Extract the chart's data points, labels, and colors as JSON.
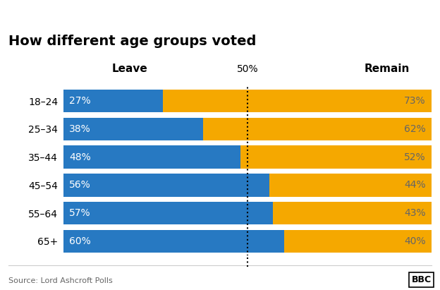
{
  "title": "How different age groups voted",
  "categories": [
    "18–24",
    "25–34",
    "35–44",
    "45–54",
    "55–64",
    "65+"
  ],
  "leave_pct": [
    27,
    38,
    48,
    56,
    57,
    60
  ],
  "remain_pct": [
    73,
    62,
    52,
    44,
    43,
    40
  ],
  "leave_color": "#2779C2",
  "remain_color": "#F5A800",
  "leave_label": "Leave",
  "remain_label": "Remain",
  "fifty_pct_label": "50%",
  "source_text": "Source: Lord Ashcroft Polls",
  "bbc_text": "BBC",
  "background_color": "#FFFFFF",
  "bar_text_color": "#FFFFFF",
  "remain_text_color": "#666666",
  "title_fontsize": 14,
  "label_fontsize": 10,
  "bar_fontsize": 10,
  "source_fontsize": 8,
  "header_fontsize": 11
}
